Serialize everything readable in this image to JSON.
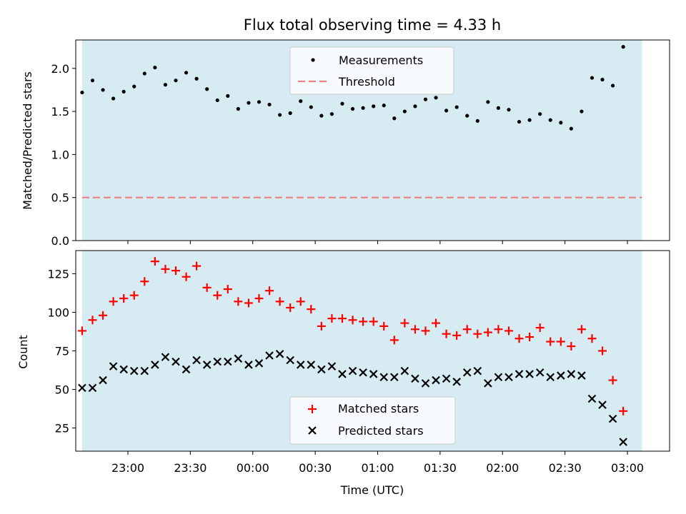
{
  "chart_data": [
    {
      "type": "scatter",
      "title": "Flux total observing time = 4.33 h",
      "ylabel": "Matched/Predicted stars",
      "ylim": [
        0,
        2.33
      ],
      "yticks": [
        "0.0",
        "0.5",
        "1.0",
        "1.5",
        "2.0"
      ],
      "shaded_span": [
        "22:38",
        "03:07"
      ],
      "shade_color": "#add8e6",
      "legend_position": "upper center",
      "series": [
        {
          "name": "Measurements",
          "marker": "dot",
          "color": "#000000",
          "values": [
            1.72,
            1.86,
            1.75,
            1.65,
            1.73,
            1.79,
            1.94,
            2.01,
            1.81,
            1.86,
            1.95,
            1.88,
            1.76,
            1.63,
            1.68,
            1.53,
            1.6,
            1.61,
            1.58,
            1.46,
            1.48,
            1.62,
            1.55,
            1.45,
            1.47,
            1.59,
            1.53,
            1.54,
            1.56,
            1.57,
            1.42,
            1.5,
            1.56,
            1.64,
            1.66,
            1.51,
            1.55,
            1.45,
            1.39,
            1.61,
            1.54,
            1.52,
            1.38,
            1.4,
            1.47,
            1.4,
            1.37,
            1.3,
            1.5,
            1.89,
            1.87,
            1.8,
            2.25
          ]
        },
        {
          "name": "Threshold",
          "line": "dashed",
          "color": "#f08080",
          "value": 0.5
        }
      ]
    },
    {
      "type": "scatter",
      "xlabel": "Time (UTC)",
      "ylabel": "Count",
      "ylim": [
        10,
        140
      ],
      "yticks": [
        "25",
        "50",
        "75",
        "100",
        "125"
      ],
      "xticks": [
        "23:00",
        "23:30",
        "00:00",
        "00:30",
        "01:00",
        "01:30",
        "02:00",
        "02:30",
        "03:00"
      ],
      "shaded_span": [
        "22:38",
        "03:07"
      ],
      "shade_color": "#add8e6",
      "legend_position": "lower center",
      "x_start": "22:38",
      "x_step_minutes": 5,
      "series": [
        {
          "name": "Matched stars",
          "marker": "plus",
          "color": "#ff0000",
          "values": [
            88,
            95,
            98,
            107,
            109,
            111,
            120,
            133,
            128,
            127,
            123,
            130,
            116,
            111,
            115,
            107,
            106,
            109,
            114,
            107,
            103,
            107,
            102,
            91,
            96,
            96,
            95,
            94,
            94,
            91,
            82,
            93,
            89,
            88,
            93,
            86,
            85,
            89,
            86,
            87,
            89,
            88,
            83,
            84,
            90,
            81,
            81,
            78,
            89,
            83,
            75,
            56,
            36
          ]
        },
        {
          "name": "Predicted stars",
          "marker": "x",
          "color": "#000000",
          "values": [
            51,
            51,
            56,
            65,
            63,
            62,
            62,
            66,
            71,
            68,
            63,
            69,
            66,
            68,
            68,
            70,
            66,
            67,
            72,
            73,
            69,
            66,
            66,
            63,
            65,
            60,
            62,
            61,
            60,
            58,
            58,
            62,
            57,
            54,
            56,
            57,
            55,
            61,
            62,
            54,
            58,
            58,
            60,
            60,
            61,
            58,
            59,
            60,
            59,
            44,
            40,
            31,
            16
          ]
        }
      ]
    }
  ]
}
